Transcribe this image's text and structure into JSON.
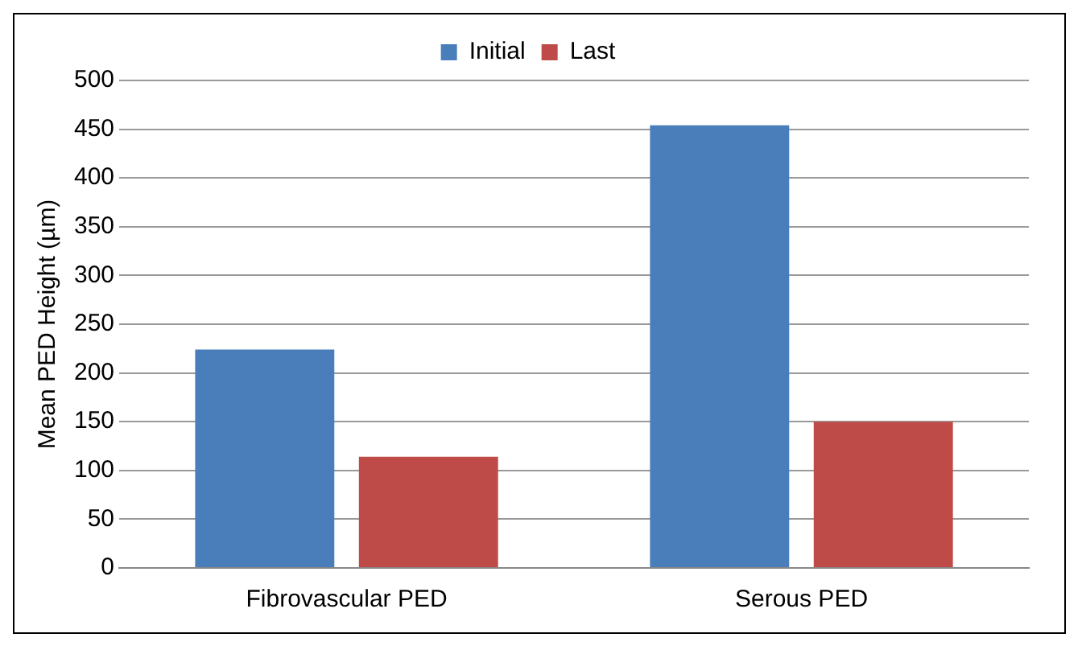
{
  "chart_data": {
    "type": "bar",
    "categories": [
      "Fibrovascular PED",
      "Serous PED"
    ],
    "series": [
      {
        "name": "Initial",
        "color": "#4a7ebb",
        "values": [
          224,
          454
        ]
      },
      {
        "name": "Last",
        "color": "#be4b48",
        "values": [
          114,
          150
        ]
      }
    ],
    "ylabel": "Mean PED Height (µm)",
    "ylim": [
      0,
      500
    ],
    "yticks": [
      0,
      50,
      100,
      150,
      200,
      250,
      300,
      350,
      400,
      450,
      500
    ],
    "grid": "y",
    "legend": "top"
  }
}
